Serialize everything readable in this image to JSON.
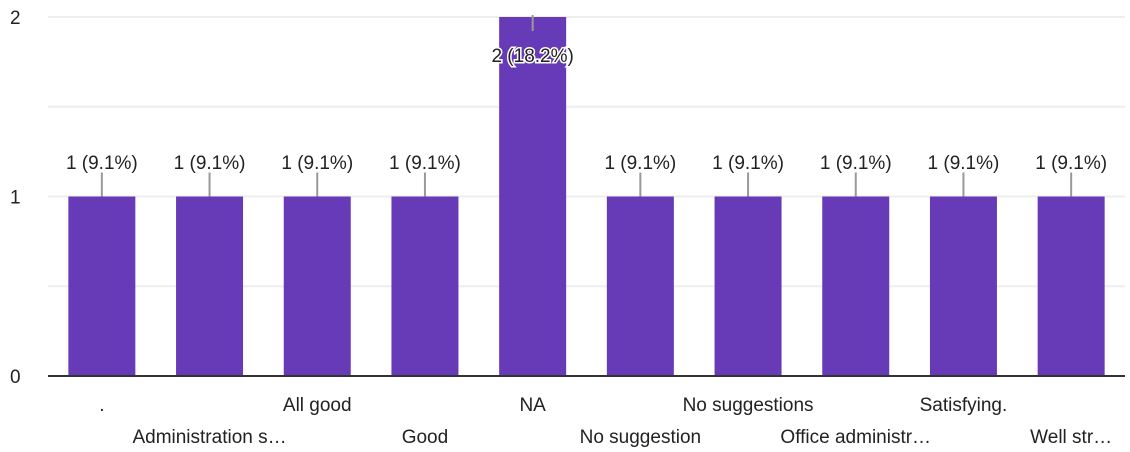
{
  "chart_data": {
    "type": "bar",
    "categories": [
      ".",
      "Administration s…",
      "All good",
      "Good",
      "NA",
      "No suggestion",
      "No suggestions",
      "Office administr…",
      "Satisfying.",
      "Well str…"
    ],
    "values": [
      1,
      1,
      1,
      1,
      2,
      1,
      1,
      1,
      1,
      1
    ],
    "data_labels": [
      "1 (9.1%)",
      "1 (9.1%)",
      "1 (9.1%)",
      "1 (9.1%)",
      "2 (18.2%)",
      "1 (9.1%)",
      "1 (9.1%)",
      "1 (9.1%)",
      "1 (9.1%)",
      "1 (9.1%)"
    ],
    "y_ticks": [
      "0",
      "1",
      "2"
    ],
    "ylim": [
      0,
      2
    ],
    "grid": true,
    "title": "",
    "xlabel": "",
    "ylabel": ""
  },
  "colors": {
    "bar": "#673ab7",
    "grid": "#eeeeee",
    "axis": "#333333",
    "leader": "#999999",
    "text": "#222222"
  }
}
